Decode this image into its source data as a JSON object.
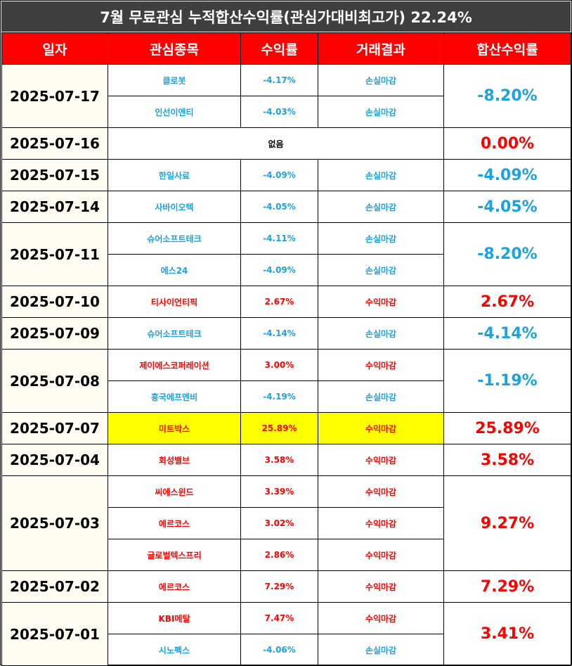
{
  "title": "7월 무료관심 누적합산수익률(관심가대비최고가) 22.24%",
  "headers": [
    "일자",
    "관심종목",
    "수익률",
    "거래결과",
    "합산수익률"
  ],
  "groups": [
    {
      "date": "2025-07-17",
      "total": "-8.20%",
      "total_type": "loss",
      "rows": [
        {
          "stock": "클로봇",
          "rate": "-4.17%",
          "result": "손실마감",
          "type": "loss"
        },
        {
          "stock": "인선이엔티",
          "rate": "-4.03%",
          "result": "손실마감",
          "type": "loss"
        }
      ]
    },
    {
      "date": "2025-07-16",
      "total": "0.00%",
      "total_type": "gain",
      "none_text": "없음",
      "rows": []
    },
    {
      "date": "2025-07-15",
      "total": "-4.09%",
      "total_type": "loss",
      "rows": [
        {
          "stock": "한일사료",
          "rate": "-4.09%",
          "result": "손실마감",
          "type": "loss"
        }
      ]
    },
    {
      "date": "2025-07-14",
      "total": "-4.05%",
      "total_type": "loss",
      "rows": [
        {
          "stock": "사바이오텍",
          "rate": "-4.05%",
          "result": "손실마감",
          "type": "loss"
        }
      ]
    },
    {
      "date": "2025-07-11",
      "total": "-8.20%",
      "total_type": "loss",
      "rows": [
        {
          "stock": "슈어소프트테크",
          "rate": "-4.11%",
          "result": "손실마감",
          "type": "loss"
        },
        {
          "stock": "에스24",
          "rate": "-4.09%",
          "result": "손실마감",
          "type": "loss"
        }
      ]
    },
    {
      "date": "2025-07-10",
      "total": "2.67%",
      "total_type": "gain",
      "rows": [
        {
          "stock": "티사이언티픽",
          "rate": "2.67%",
          "result": "수익마감",
          "type": "gain"
        }
      ]
    },
    {
      "date": "2025-07-09",
      "total": "-4.14%",
      "total_type": "loss",
      "rows": [
        {
          "stock": "슈어소프트테크",
          "rate": "-4.14%",
          "result": "손실마감",
          "type": "loss"
        }
      ]
    },
    {
      "date": "2025-07-08",
      "total": "-1.19%",
      "total_type": "loss",
      "rows": [
        {
          "stock": "제이에스코퍼레이션",
          "rate": "3.00%",
          "result": "수익마감",
          "type": "gain"
        },
        {
          "stock": "흥국에프엔비",
          "rate": "-4.19%",
          "result": "손실마감",
          "type": "loss"
        }
      ]
    },
    {
      "date": "2025-07-07",
      "total": "25.89%",
      "total_type": "gain",
      "rows": [
        {
          "stock": "미트박스",
          "rate": "25.89%",
          "result": "수익마감",
          "type": "gain",
          "highlight": true
        }
      ]
    },
    {
      "date": "2025-07-04",
      "total": "3.58%",
      "total_type": "gain",
      "rows": [
        {
          "stock": "회성밸브",
          "rate": "3.58%",
          "result": "수익마감",
          "type": "gain"
        }
      ]
    },
    {
      "date": "2025-07-03",
      "total": "9.27%",
      "total_type": "gain",
      "rows": [
        {
          "stock": "씨에스윈드",
          "rate": "3.39%",
          "result": "수익마감",
          "type": "gain"
        },
        {
          "stock": "에르코스",
          "rate": "3.02%",
          "result": "수익마감",
          "type": "gain"
        },
        {
          "stock": "글로벌텍스프리",
          "rate": "2.86%",
          "result": "수익마감",
          "type": "gain"
        }
      ]
    },
    {
      "date": "2025-07-02",
      "total": "7.29%",
      "total_type": "gain",
      "rows": [
        {
          "stock": "에르코스",
          "rate": "7.29%",
          "result": "수익마감",
          "type": "gain"
        }
      ]
    },
    {
      "date": "2025-07-01",
      "total": "3.41%",
      "total_type": "gain",
      "rows": [
        {
          "stock": "KBI메탈",
          "rate": "7.47%",
          "result": "수익마감",
          "type": "gain"
        },
        {
          "stock": "시노펙스",
          "rate": "-4.06%",
          "result": "손실마감",
          "type": "loss"
        }
      ]
    }
  ]
}
